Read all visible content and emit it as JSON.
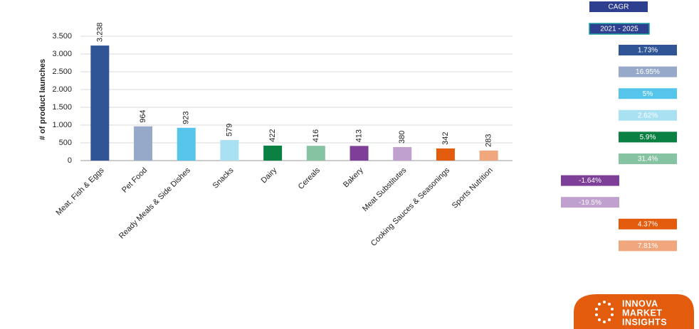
{
  "chart_data": {
    "type": "bar",
    "y_label": "# of product launches",
    "categories": [
      "Meat, Fish & Eggs",
      "Pet Food",
      "Ready Meals & Side Dishes",
      "Snacks",
      "Dairy",
      "Cereals",
      "Bakery",
      "Meat Substitutes",
      "Cooking Sauces & Seasonings",
      "Sports Nutrition"
    ],
    "values": [
      3238,
      964,
      923,
      579,
      422,
      416,
      413,
      380,
      342,
      283
    ],
    "value_labels": [
      "3.238",
      "964",
      "923",
      "579",
      "422",
      "416",
      "413",
      "380",
      "342",
      "283"
    ],
    "colors": [
      "#2f5597",
      "#97a9c9",
      "#56c5ec",
      "#a9e1f3",
      "#0b8043",
      "#86c3a3",
      "#7d3f98",
      "#c0a0cf",
      "#e35b0c",
      "#f0a77e"
    ],
    "ylim": [
      0,
      3500
    ],
    "yticks": [
      0,
      500,
      {
        "value": 1000,
        "label": "1.000"
      },
      {
        "value": 1500,
        "label": "1.500"
      },
      {
        "value": 2000,
        "label": "2.000"
      },
      {
        "value": 2500,
        "label": "2.500"
      },
      {
        "value": 3000,
        "label": "3.000"
      },
      {
        "value": 3500,
        "label": "3.500"
      }
    ],
    "grid": true
  },
  "cagr": {
    "title": "CAGR",
    "period": "2021 - 2025",
    "values": [
      1.73,
      16.95,
      5,
      2.62,
      5.9,
      31.4,
      -1.64,
      -19.5,
      4.37,
      7.81
    ],
    "value_labels": [
      "1.73%",
      "16.95%",
      "5%",
      "2.62%",
      "5.9%",
      "31.4%",
      "-1.64%",
      "-19.5%",
      "4.37%",
      "7.81%"
    ]
  },
  "logo": {
    "lines": [
      "INNOVA",
      "MARKET",
      "INSIGHTS"
    ]
  }
}
